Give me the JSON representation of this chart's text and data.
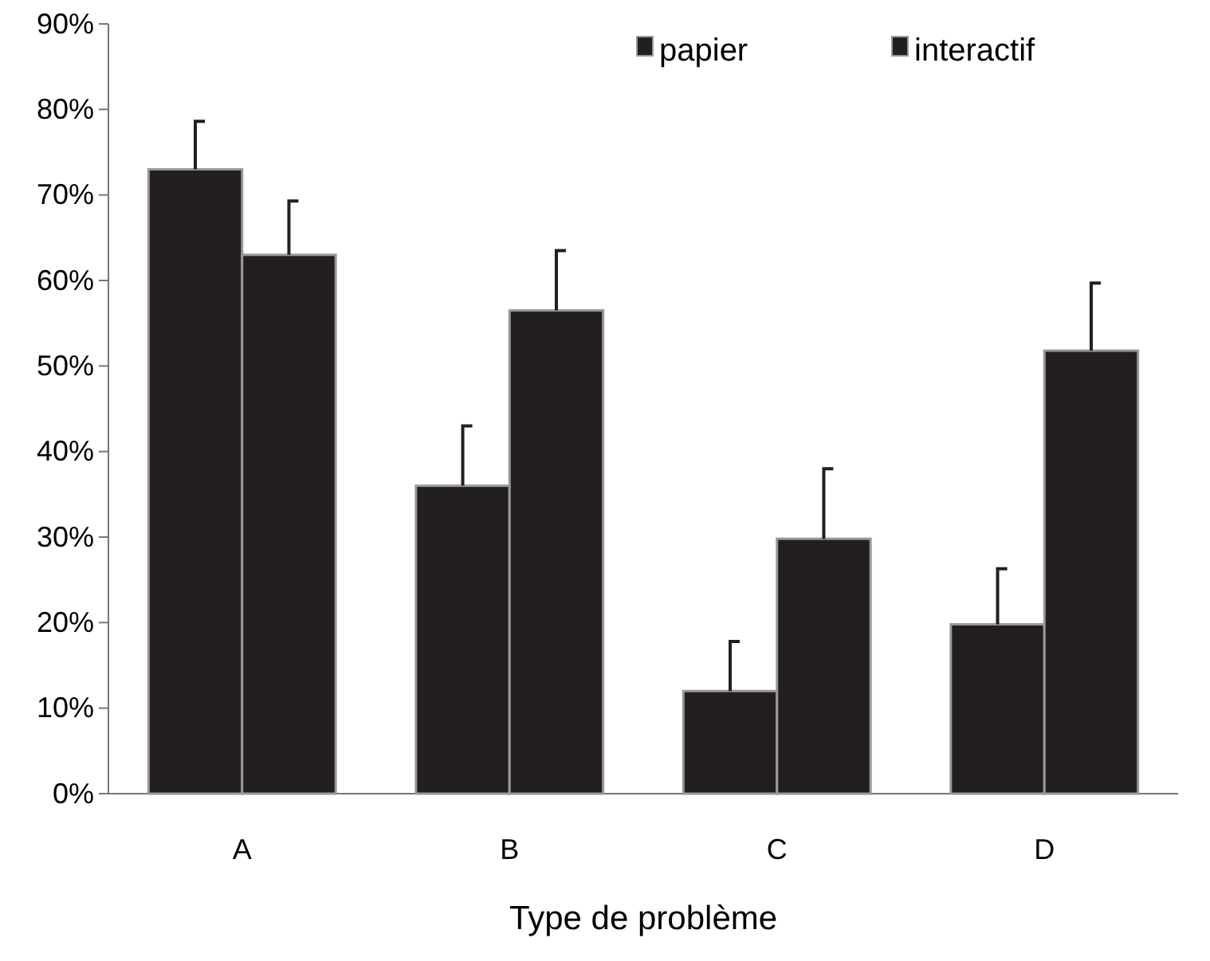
{
  "chart_data": {
    "type": "bar",
    "xlabel": "Type de problème",
    "categories": [
      "A",
      "B",
      "C",
      "D"
    ],
    "series": [
      {
        "name": "papier",
        "color": "#231f20",
        "values": [
          73,
          36,
          12,
          19.8
        ],
        "errors": [
          [
            73,
            78.6
          ],
          [
            36,
            43
          ],
          [
            12,
            17.8
          ],
          [
            19.8,
            26.3
          ]
        ]
      },
      {
        "name": "interactif",
        "color": "#231f20",
        "values": [
          63,
          56.5,
          29.8,
          51.8
        ],
        "errors": [
          [
            63,
            69.3
          ],
          [
            56.5,
            63.5
          ],
          [
            29.8,
            38
          ],
          [
            51.8,
            59.7
          ]
        ]
      }
    ],
    "ylim": [
      0,
      90
    ],
    "yticks": [
      {
        "value": 0,
        "label": "0%"
      },
      {
        "value": 10,
        "label": "10%"
      },
      {
        "value": 20,
        "label": "20%"
      },
      {
        "value": 30,
        "label": "30%"
      },
      {
        "value": 40,
        "label": "40%"
      },
      {
        "value": 50,
        "label": "50%"
      },
      {
        "value": 60,
        "label": "60%"
      },
      {
        "value": 70,
        "label": "70%"
      },
      {
        "value": 80,
        "label": "80%"
      },
      {
        "value": 90,
        "label": "90%"
      }
    ],
    "grid": false,
    "legend": "top"
  }
}
